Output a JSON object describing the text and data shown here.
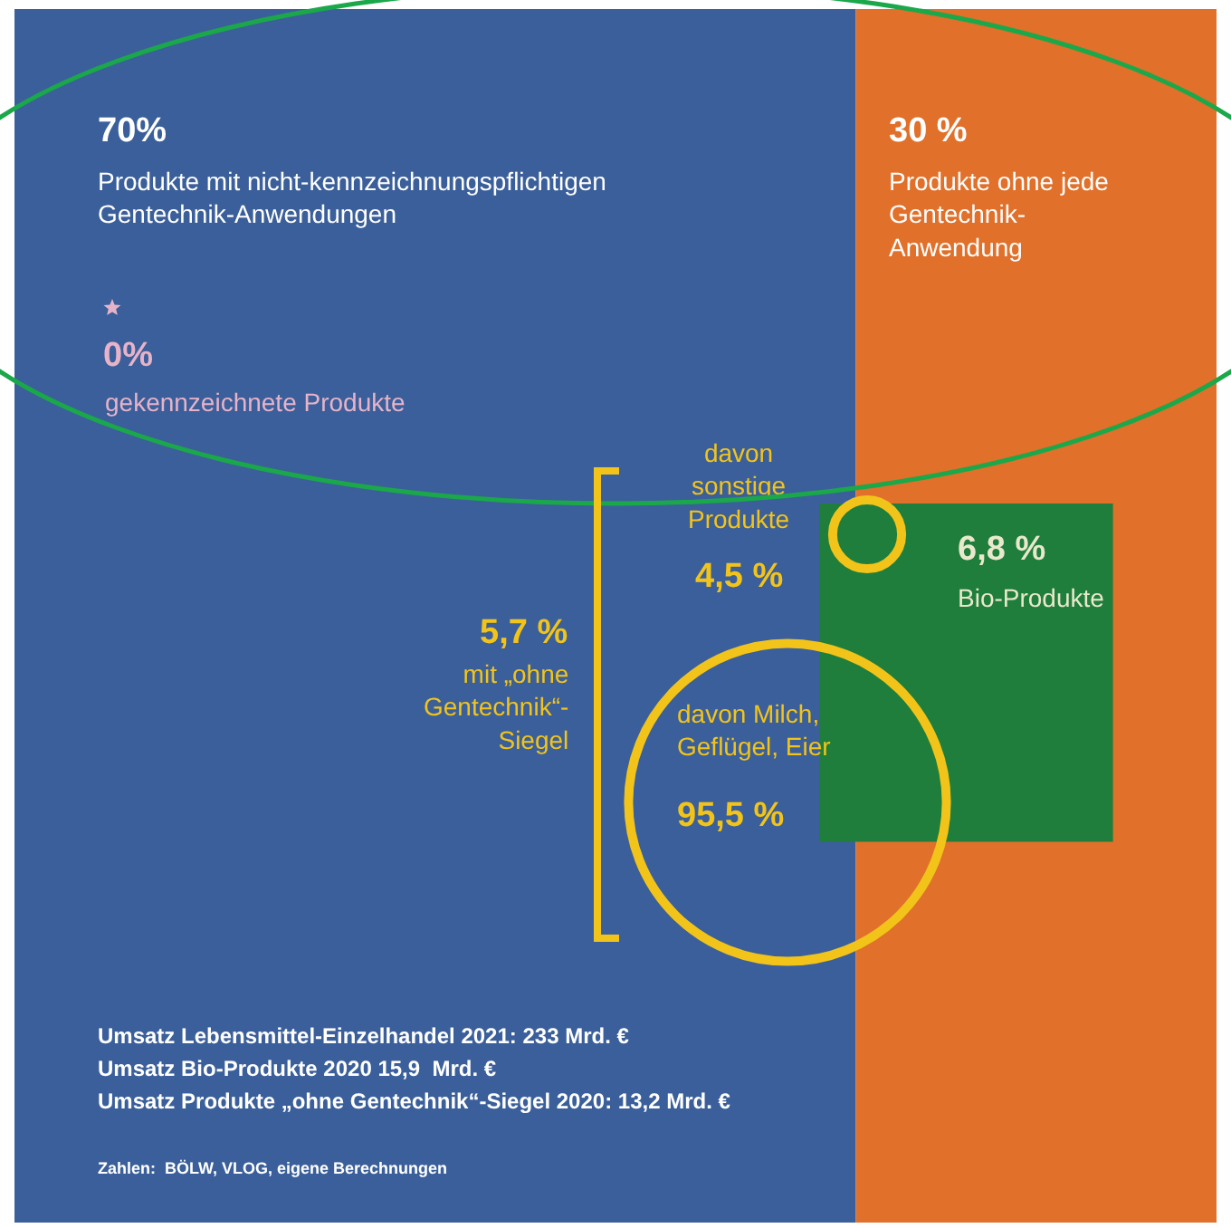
{
  "chart_data": {
    "type": "other",
    "categories": [
      "Produkte mit nicht-kennzeichnungspflichtigen Gentechnik-Anwendungen",
      "Produkte ohne jede Gentechnik-Anwendung",
      "gekennzeichnete Produkte",
      "Bio-Produkte",
      "mit „ohne Gentechnik“-Siegel",
      "davon sonstige Produkte",
      "davon Milch, Geflügel, Eier"
    ],
    "values": [
      70,
      30,
      0,
      6.8,
      5.7,
      4.5,
      95.5
    ],
    "value_labels": [
      "70%",
      "30 %",
      "0%",
      "6,8 %",
      "5,7 %",
      "4,5 %",
      "95,5 %"
    ],
    "colors": [
      "#3b5f9a",
      "#e0702a",
      "#e6b3c9",
      "#1f7e3b",
      "#f2c41a",
      "#f2c41a",
      "#f2c41a"
    ],
    "annotations": [
      "Umsatz Lebensmittel-Einzelhandel 2021: 233 Mrd. €",
      "Umsatz Bio-Produkte 2020 15,9  Mrd. €",
      "Umsatz Produkte „ohne Gentechnik“-Siegel 2020: 13,2 Mrd. €",
      "Zahlen:  BÖLW, VLOG, eigene Berechnungen"
    ]
  }
}
